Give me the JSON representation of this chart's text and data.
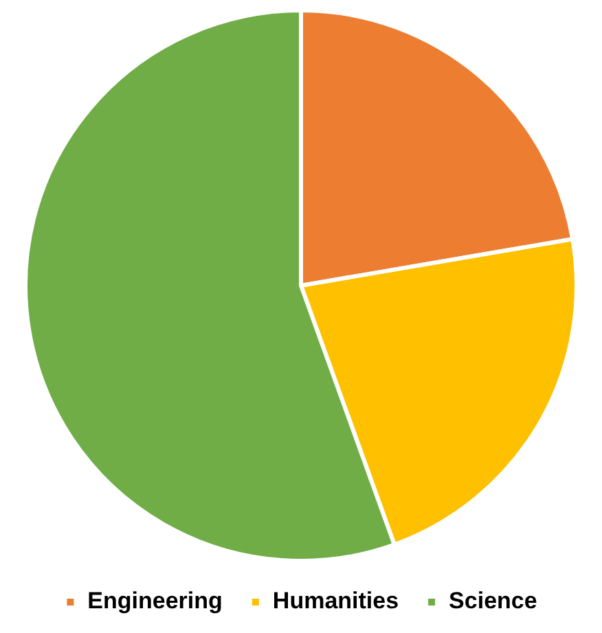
{
  "chart_data": {
    "type": "pie",
    "categories": [
      "Engineering",
      "Humanities",
      "Science"
    ],
    "values": [
      22.3,
      22.2,
      55.5
    ],
    "colors": [
      "#ed7d31",
      "#ffc000",
      "#70ad47"
    ],
    "legend": "bottom"
  }
}
